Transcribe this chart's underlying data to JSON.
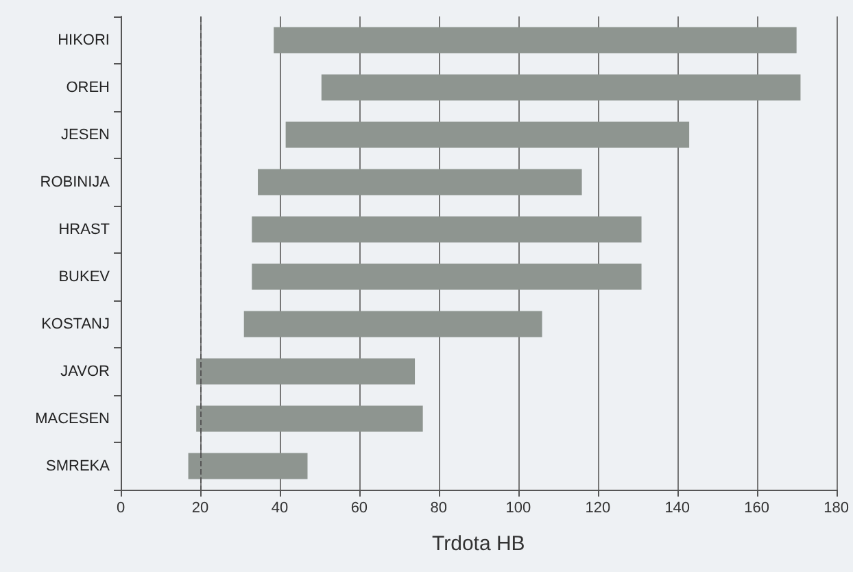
{
  "chart_data": {
    "type": "bar",
    "orientation": "horizontal",
    "xlabel": "Trdota HB",
    "categories": [
      "HIKORI",
      "OREH",
      "JESEN",
      "ROBINIJA",
      "HRAST",
      "BUKEV",
      "KOSTANJ",
      "JAVOR",
      "MACESEN",
      "SMREKA"
    ],
    "base": [
      38.5,
      50.5,
      41.5,
      34.5,
      33,
      33,
      31,
      19,
      19,
      17
    ],
    "values": [
      131.5,
      120.5,
      101.5,
      81.5,
      98,
      98,
      75,
      55,
      57,
      30
    ],
    "color": "#8e9590",
    "xlim": [
      0,
      180
    ],
    "xticks": [
      0,
      20,
      40,
      60,
      80,
      100,
      120,
      140,
      160,
      180
    ],
    "grid": "x",
    "ref_lines": [
      {
        "axis": "x",
        "value": 20,
        "color": "#555555",
        "line_style": "dashed"
      }
    ]
  }
}
